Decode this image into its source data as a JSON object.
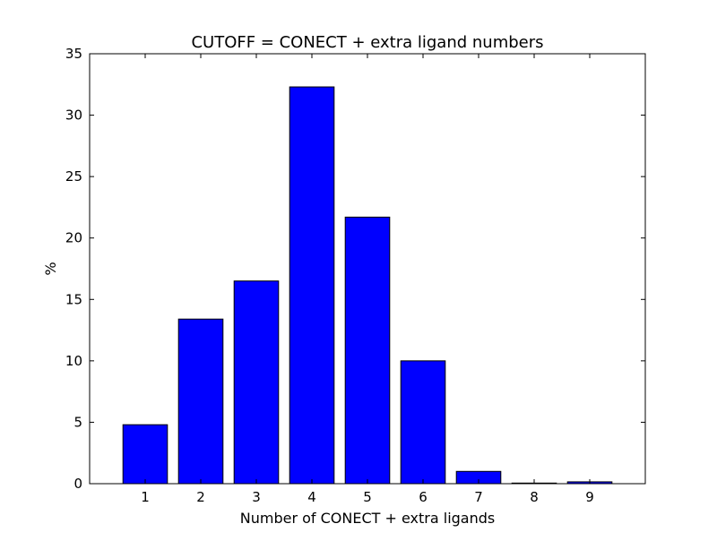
{
  "chart_data": {
    "type": "bar",
    "title": "CUTOFF = CONECT + extra ligand numbers",
    "xlabel": "Number of CONECT + extra ligands",
    "ylabel": "%",
    "categories": [
      "1",
      "2",
      "3",
      "4",
      "5",
      "6",
      "7",
      "8",
      "9"
    ],
    "x": [
      1,
      2,
      3,
      4,
      5,
      6,
      7,
      8,
      9
    ],
    "values": [
      4.8,
      13.4,
      16.5,
      32.3,
      21.7,
      10.0,
      1.0,
      0.05,
      0.15
    ],
    "xlim": [
      0,
      10
    ],
    "ylim": [
      0,
      35
    ],
    "yticks": [
      0,
      5,
      10,
      15,
      20,
      25,
      30,
      35
    ],
    "ytick_labels": [
      "0",
      "5",
      "10",
      "15",
      "20",
      "25",
      "30",
      "35"
    ],
    "bar_color": "#0000ff",
    "edge_color": "#000000",
    "grid": false,
    "legend": "none"
  }
}
